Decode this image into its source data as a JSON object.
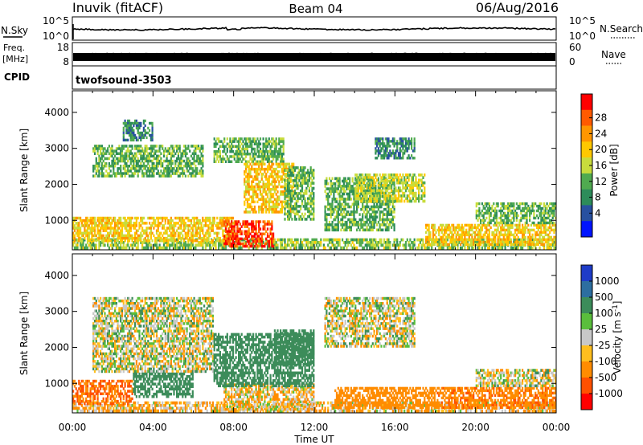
{
  "header": {
    "site": "Inuvik (fitACF)",
    "beam": "Beam 04",
    "date": "06/Aug/2016"
  },
  "noise_panel": {
    "left_label": "N.Sky",
    "right_label": "N.Search",
    "left_ticks": [
      "10^5",
      "10^0"
    ],
    "right_ticks": [
      "10^5",
      "10^0"
    ]
  },
  "freq_panel": {
    "left_label_1": "Freq.",
    "left_label_2": "[MHz]",
    "right_label": "Nave",
    "left_ticks": [
      "18",
      "8"
    ],
    "right_ticks": [
      "60",
      "0"
    ]
  },
  "cpid_panel": {
    "left_label": "CPID",
    "program": "twofsound",
    "cpid": "-3503"
  },
  "axes": {
    "x_label": "Time UT",
    "x_ticks": [
      "00:00",
      "04:00",
      "08:00",
      "12:00",
      "16:00",
      "20:00",
      "00:00"
    ],
    "y_label": "Slant Range [km]",
    "y_ticks": [
      "1000",
      "2000",
      "3000",
      "4000"
    ]
  },
  "power_colorbar": {
    "label": "Power [dB]",
    "ticks": [
      "28",
      "24",
      "20",
      "16",
      "12",
      "8",
      "4"
    ],
    "colors": [
      "#ff0000",
      "#ff5a00",
      "#ff9600",
      "#ffc800",
      "#c8dc3c",
      "#50aa50",
      "#2d8c5a",
      "#2850a0",
      "#0014ff"
    ]
  },
  "velocity_colorbar": {
    "label": "Velocity [m s^-1]",
    "ticks": [
      "1000",
      "500",
      "100",
      "25",
      "-25",
      "-100",
      "-500",
      "-1000"
    ],
    "colors": [
      "#1e3cc8",
      "#2d6ea0",
      "#3c8c5a",
      "#5abe3c",
      "#c8c8c8",
      "#ffbe1e",
      "#ff8c00",
      "#ff5000",
      "#ff0000"
    ]
  },
  "chart_data": [
    {
      "type": "heatmap",
      "title": "Power",
      "xlabel": "Time UT",
      "ylabel": "Slant Range [km]",
      "xlim": [
        "00:00",
        "24:00"
      ],
      "ylim": [
        180,
        4600
      ],
      "colorbar": {
        "label": "Power [dB]",
        "range": [
          0,
          32
        ]
      },
      "regions": [
        {
          "t0": 0.0,
          "t1": 24.0,
          "r0": 200,
          "r1": 500,
          "value": 14
        },
        {
          "t0": 0.0,
          "t1": 8.0,
          "r0": 400,
          "r1": 1100,
          "value": 20
        },
        {
          "t0": 1.0,
          "t1": 6.5,
          "r0": 2200,
          "r1": 3100,
          "value": 12
        },
        {
          "t0": 2.5,
          "t1": 4.0,
          "r0": 3200,
          "r1": 3800,
          "value": 8
        },
        {
          "t0": 7.5,
          "t1": 10.0,
          "r0": 250,
          "r1": 1000,
          "value": 30
        },
        {
          "t0": 7.0,
          "t1": 10.5,
          "r0": 2600,
          "r1": 3300,
          "value": 12
        },
        {
          "t0": 8.5,
          "t1": 11.0,
          "r0": 1200,
          "r1": 2600,
          "value": 20
        },
        {
          "t0": 10.5,
          "t1": 12.0,
          "r0": 1000,
          "r1": 2500,
          "value": 12
        },
        {
          "t0": 12.5,
          "t1": 16.0,
          "r0": 700,
          "r1": 2200,
          "value": 12
        },
        {
          "t0": 14.0,
          "t1": 17.5,
          "r0": 1500,
          "r1": 2300,
          "value": 16
        },
        {
          "t0": 15.0,
          "t1": 17.0,
          "r0": 2700,
          "r1": 3300,
          "value": 8
        },
        {
          "t0": 17.5,
          "t1": 24.0,
          "r0": 300,
          "r1": 900,
          "value": 20
        },
        {
          "t0": 20.0,
          "t1": 24.0,
          "r0": 900,
          "r1": 1500,
          "value": 12
        }
      ]
    },
    {
      "type": "heatmap",
      "title": "Velocity",
      "xlabel": "Time UT",
      "ylabel": "Slant Range [km]",
      "xlim": [
        "00:00",
        "24:00"
      ],
      "ylim": [
        180,
        4600
      ],
      "colorbar": {
        "label": "Velocity [m s^-1]",
        "levels": [
          -1000,
          -500,
          -100,
          -25,
          25,
          100,
          500,
          1000
        ]
      },
      "regions": [
        {
          "t0": 0.0,
          "t1": 24.0,
          "r0": 200,
          "r1": 500,
          "value": -50
        },
        {
          "t0": 0.0,
          "t1": 3.0,
          "r0": 400,
          "r1": 1100,
          "value": -300
        },
        {
          "t0": 1.0,
          "t1": 7.0,
          "r0": 1300,
          "r1": 3400,
          "value": 0
        },
        {
          "t0": 3.0,
          "t1": 6.0,
          "r0": 600,
          "r1": 1300,
          "value": 150
        },
        {
          "t0": 7.5,
          "t1": 12.0,
          "r0": 250,
          "r1": 1000,
          "value": -40
        },
        {
          "t0": 7.0,
          "t1": 12.0,
          "r0": 900,
          "r1": 2400,
          "value": 150
        },
        {
          "t0": 10.0,
          "t1": 12.0,
          "r0": 1500,
          "r1": 2500,
          "value": 150
        },
        {
          "t0": 12.5,
          "t1": 17.0,
          "r0": 2000,
          "r1": 3400,
          "value": 0
        },
        {
          "t0": 13.0,
          "t1": 18.0,
          "r0": 300,
          "r1": 900,
          "value": -200
        },
        {
          "t0": 18.0,
          "t1": 24.0,
          "r0": 300,
          "r1": 900,
          "value": -250
        },
        {
          "t0": 20.0,
          "t1": 24.0,
          "r0": 900,
          "r1": 1400,
          "value": 0
        }
      ]
    }
  ]
}
